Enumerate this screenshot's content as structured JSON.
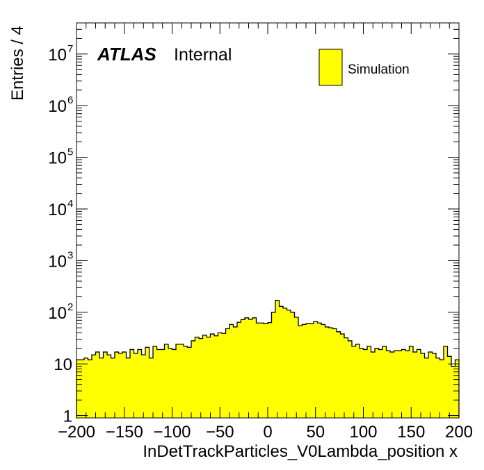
{
  "chart_data": {
    "type": "bar",
    "style": "filled-step-histogram",
    "title": "",
    "xlabel": "InDetTrackParticles_V0Lambda_position x",
    "ylabel": "Entries / 4",
    "xlim": [
      -200,
      200
    ],
    "ylim": [
      0.9,
      40000000
    ],
    "log_y": true,
    "bin_width": 4,
    "fill_color": "#ffff00",
    "edge_color": "#000000",
    "x_ticks": [
      -200,
      -150,
      -100,
      -50,
      0,
      50,
      100,
      150,
      200
    ],
    "x_tick_labels": [
      "−200",
      "−150",
      "−100",
      "−50",
      "0",
      "50",
      "100",
      "150",
      "200"
    ],
    "y_tick_labels": [
      {
        "value": 1,
        "base": "1",
        "exp": ""
      },
      {
        "value": 10,
        "base": "10",
        "exp": ""
      },
      {
        "value": 100,
        "base": "10",
        "exp": "2"
      },
      {
        "value": 1000,
        "base": "10",
        "exp": "3"
      },
      {
        "value": 10000,
        "base": "10",
        "exp": "4"
      },
      {
        "value": 100000,
        "base": "10",
        "exp": "5"
      },
      {
        "value": 1000000,
        "base": "10",
        "exp": "6"
      },
      {
        "value": 10000000,
        "base": "10",
        "exp": "7"
      }
    ],
    "legend": {
      "placement": "top-right",
      "entries": [
        "Simulation"
      ]
    },
    "label_atlas": "ATLAS",
    "label_internal": "Internal",
    "series": [
      {
        "name": "Simulation",
        "bin_low_edges": [
          -200,
          -196,
          -192,
          -188,
          -184,
          -180,
          -176,
          -172,
          -168,
          -164,
          -160,
          -156,
          -152,
          -148,
          -144,
          -140,
          -136,
          -132,
          -128,
          -124,
          -120,
          -116,
          -112,
          -108,
          -104,
          -100,
          -96,
          -92,
          -88,
          -84,
          -80,
          -76,
          -72,
          -68,
          -64,
          -60,
          -56,
          -52,
          -48,
          -44,
          -40,
          -36,
          -32,
          -28,
          -24,
          -20,
          -16,
          -12,
          -8,
          -4,
          0,
          4,
          8,
          12,
          16,
          20,
          24,
          28,
          32,
          36,
          40,
          44,
          48,
          52,
          56,
          60,
          64,
          68,
          72,
          76,
          80,
          84,
          88,
          92,
          96,
          100,
          104,
          108,
          112,
          116,
          120,
          124,
          128,
          132,
          136,
          140,
          144,
          148,
          152,
          156,
          160,
          164,
          168,
          172,
          176,
          180,
          184,
          188,
          192,
          196
        ],
        "values": [
          12,
          12,
          13,
          12,
          15,
          17,
          13,
          17,
          15,
          13,
          17,
          16,
          17,
          13,
          19,
          16,
          19,
          15,
          21,
          13,
          22,
          19,
          19,
          24,
          20,
          19,
          24,
          24,
          22,
          21,
          28,
          33,
          31,
          36,
          33,
          38,
          35,
          40,
          39,
          48,
          58,
          52,
          64,
          72,
          78,
          73,
          78,
          62,
          62,
          60,
          63,
          100,
          170,
          130,
          120,
          110,
          100,
          80,
          55,
          58,
          60,
          60,
          66,
          62,
          58,
          52,
          50,
          48,
          42,
          38,
          32,
          28,
          22,
          24,
          20,
          19,
          22,
          17,
          20,
          19,
          22,
          18,
          17,
          18,
          18,
          19,
          18,
          22,
          17,
          19,
          16,
          13,
          17,
          16,
          13,
          12,
          22,
          14,
          9,
          12
        ]
      }
    ]
  }
}
